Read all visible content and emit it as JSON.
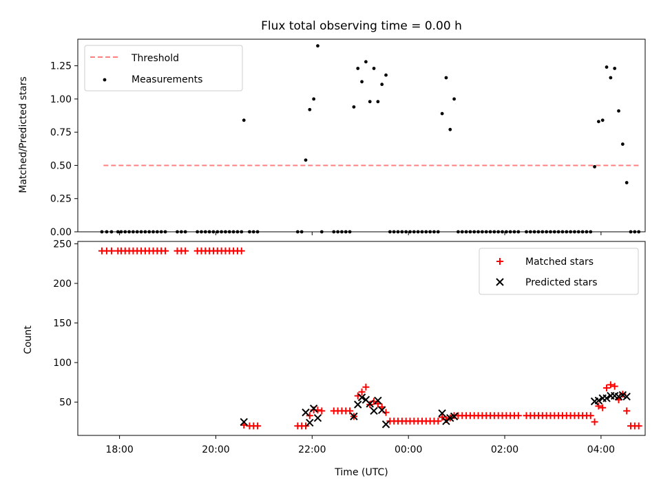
{
  "chart_data": [
    {
      "type": "scatter",
      "title": "Flux total observing time = 0.00 h",
      "xlabel": "",
      "ylabel": "Matched/Predicted stars",
      "ylim": [
        0,
        1.45
      ],
      "xlim": [
        "17:08",
        "04:55"
      ],
      "yticks": [
        "0.00",
        "0.25",
        "0.50",
        "0.75",
        "1.00",
        "1.25"
      ],
      "legend": {
        "placement": "top-left",
        "entries": [
          "Threshold",
          "Measurements"
        ]
      },
      "threshold": {
        "name": "Threshold",
        "value": 0.5,
        "x_start": "17:40",
        "x_end": "04:48",
        "color": "#ff7f7f"
      },
      "series": [
        {
          "name": "Measurements",
          "color": "#000000",
          "points": [
            [
              "17:38",
              0
            ],
            [
              "17:44",
              0
            ],
            [
              "17:50",
              0
            ],
            [
              "17:58",
              0
            ],
            [
              "18:02",
              0
            ],
            [
              "18:07",
              0
            ],
            [
              "18:12",
              0
            ],
            [
              "18:17",
              0
            ],
            [
              "18:22",
              0
            ],
            [
              "18:27",
              0
            ],
            [
              "18:32",
              0
            ],
            [
              "18:37",
              0
            ],
            [
              "18:42",
              0
            ],
            [
              "18:47",
              0
            ],
            [
              "18:52",
              0
            ],
            [
              "18:57",
              0
            ],
            [
              "19:12",
              0
            ],
            [
              "19:17",
              0
            ],
            [
              "19:22",
              0
            ],
            [
              "19:37",
              0
            ],
            [
              "19:42",
              0
            ],
            [
              "19:47",
              0
            ],
            [
              "19:52",
              0
            ],
            [
              "19:57",
              0
            ],
            [
              "20:02",
              0
            ],
            [
              "20:07",
              0
            ],
            [
              "20:12",
              0
            ],
            [
              "20:17",
              0
            ],
            [
              "20:22",
              0
            ],
            [
              "20:27",
              0
            ],
            [
              "20:32",
              0
            ],
            [
              "20:35",
              0.84
            ],
            [
              "20:42",
              0
            ],
            [
              "20:47",
              0
            ],
            [
              "20:52",
              0
            ],
            [
              "21:42",
              0
            ],
            [
              "21:47",
              0
            ],
            [
              "21:52",
              0.54
            ],
            [
              "21:57",
              0.92
            ],
            [
              "22:02",
              1.0
            ],
            [
              "22:07",
              1.4
            ],
            [
              "22:12",
              0
            ],
            [
              "22:27",
              0
            ],
            [
              "22:32",
              0
            ],
            [
              "22:37",
              0
            ],
            [
              "22:42",
              0
            ],
            [
              "22:47",
              0
            ],
            [
              "22:52",
              0.94
            ],
            [
              "22:57",
              1.23
            ],
            [
              "23:02",
              1.13
            ],
            [
              "23:07",
              1.28
            ],
            [
              "23:12",
              0.98
            ],
            [
              "23:17",
              1.23
            ],
            [
              "23:22",
              0.98
            ],
            [
              "23:27",
              1.11
            ],
            [
              "23:32",
              1.18
            ],
            [
              "23:37",
              0
            ],
            [
              "23:42",
              0
            ],
            [
              "23:47",
              0
            ],
            [
              "23:52",
              0
            ],
            [
              "23:57",
              0
            ],
            [
              "00:02",
              0
            ],
            [
              "00:07",
              0
            ],
            [
              "00:12",
              0
            ],
            [
              "00:17",
              0
            ],
            [
              "00:22",
              0
            ],
            [
              "00:27",
              0
            ],
            [
              "00:32",
              0
            ],
            [
              "00:37",
              0
            ],
            [
              "00:42",
              0.89
            ],
            [
              "00:47",
              1.16
            ],
            [
              "00:52",
              0.77
            ],
            [
              "00:57",
              1.0
            ],
            [
              "01:02",
              0
            ],
            [
              "01:07",
              0
            ],
            [
              "01:12",
              0
            ],
            [
              "01:17",
              0
            ],
            [
              "01:22",
              0
            ],
            [
              "01:27",
              0
            ],
            [
              "01:32",
              0
            ],
            [
              "01:37",
              0
            ],
            [
              "01:42",
              0
            ],
            [
              "01:47",
              0
            ],
            [
              "01:52",
              0
            ],
            [
              "01:57",
              0
            ],
            [
              "02:02",
              0
            ],
            [
              "02:07",
              0
            ],
            [
              "02:12",
              0
            ],
            [
              "02:17",
              0
            ],
            [
              "02:27",
              0
            ],
            [
              "02:32",
              0
            ],
            [
              "02:37",
              0
            ],
            [
              "02:42",
              0
            ],
            [
              "02:47",
              0
            ],
            [
              "02:52",
              0
            ],
            [
              "02:57",
              0
            ],
            [
              "03:02",
              0
            ],
            [
              "03:07",
              0
            ],
            [
              "03:12",
              0
            ],
            [
              "03:17",
              0
            ],
            [
              "03:22",
              0
            ],
            [
              "03:27",
              0
            ],
            [
              "03:32",
              0
            ],
            [
              "03:37",
              0
            ],
            [
              "03:42",
              0
            ],
            [
              "03:47",
              0
            ],
            [
              "03:52",
              0.49
            ],
            [
              "03:57",
              0.83
            ],
            [
              "04:02",
              0.84
            ],
            [
              "04:07",
              1.24
            ],
            [
              "04:12",
              1.16
            ],
            [
              "04:17",
              1.23
            ],
            [
              "04:22",
              0.91
            ],
            [
              "04:27",
              0.66
            ],
            [
              "04:32",
              0.37
            ],
            [
              "04:37",
              0
            ],
            [
              "04:42",
              0
            ],
            [
              "04:47",
              0
            ]
          ]
        }
      ]
    },
    {
      "type": "scatter",
      "title": "",
      "xlabel": "Time (UTC)",
      "ylabel": "Count",
      "ylim": [
        8,
        253
      ],
      "xlim": [
        "17:08",
        "04:55"
      ],
      "xticks": [
        "18:00",
        "20:00",
        "22:00",
        "00:00",
        "02:00",
        "04:00"
      ],
      "yticks": [
        "50",
        "100",
        "150",
        "200",
        "250"
      ],
      "legend": {
        "placement": "top-right",
        "entries": [
          "Matched stars",
          "Predicted stars"
        ]
      },
      "series": [
        {
          "name": "Matched stars",
          "color": "#ff0000",
          "marker": "plus",
          "points": [
            [
              "17:38",
              241
            ],
            [
              "17:44",
              241
            ],
            [
              "17:50",
              241
            ],
            [
              "17:58",
              241
            ],
            [
              "18:02",
              241
            ],
            [
              "18:07",
              241
            ],
            [
              "18:12",
              241
            ],
            [
              "18:17",
              241
            ],
            [
              "18:22",
              241
            ],
            [
              "18:27",
              241
            ],
            [
              "18:32",
              241
            ],
            [
              "18:37",
              241
            ],
            [
              "18:42",
              241
            ],
            [
              "18:47",
              241
            ],
            [
              "18:52",
              241
            ],
            [
              "18:57",
              241
            ],
            [
              "19:12",
              241
            ],
            [
              "19:17",
              241
            ],
            [
              "19:22",
              241
            ],
            [
              "19:37",
              241
            ],
            [
              "19:42",
              241
            ],
            [
              "19:47",
              241
            ],
            [
              "19:52",
              241
            ],
            [
              "19:57",
              241
            ],
            [
              "20:02",
              241
            ],
            [
              "20:07",
              241
            ],
            [
              "20:12",
              241
            ],
            [
              "20:17",
              241
            ],
            [
              "20:22",
              241
            ],
            [
              "20:27",
              241
            ],
            [
              "20:32",
              241
            ],
            [
              "20:35",
              21
            ],
            [
              "20:42",
              20
            ],
            [
              "20:47",
              20
            ],
            [
              "20:52",
              20
            ],
            [
              "21:42",
              20
            ],
            [
              "21:47",
              20
            ],
            [
              "21:52",
              20
            ],
            [
              "21:57",
              33
            ],
            [
              "22:02",
              40
            ],
            [
              "22:07",
              40
            ],
            [
              "22:12",
              39
            ],
            [
              "22:27",
              39
            ],
            [
              "22:32",
              39
            ],
            [
              "22:37",
              39
            ],
            [
              "22:42",
              39
            ],
            [
              "22:47",
              39
            ],
            [
              "22:52",
              32
            ],
            [
              "22:57",
              58
            ],
            [
              "23:02",
              63
            ],
            [
              "23:07",
              69
            ],
            [
              "23:12",
              47
            ],
            [
              "23:17",
              51
            ],
            [
              "23:22",
              48
            ],
            [
              "23:27",
              44
            ],
            [
              "23:32",
              37
            ],
            [
              "23:37",
              26
            ],
            [
              "23:42",
              26
            ],
            [
              "23:47",
              26
            ],
            [
              "23:52",
              26
            ],
            [
              "23:57",
              26
            ],
            [
              "00:02",
              26
            ],
            [
              "00:07",
              26
            ],
            [
              "00:12",
              26
            ],
            [
              "00:17",
              26
            ],
            [
              "00:22",
              26
            ],
            [
              "00:27",
              26
            ],
            [
              "00:32",
              26
            ],
            [
              "00:37",
              26
            ],
            [
              "00:42",
              31
            ],
            [
              "00:47",
              28
            ],
            [
              "00:52",
              30
            ],
            [
              "00:57",
              33
            ],
            [
              "01:02",
              33
            ],
            [
              "01:07",
              33
            ],
            [
              "01:12",
              33
            ],
            [
              "01:17",
              33
            ],
            [
              "01:22",
              33
            ],
            [
              "01:27",
              33
            ],
            [
              "01:32",
              33
            ],
            [
              "01:37",
              33
            ],
            [
              "01:42",
              33
            ],
            [
              "01:47",
              33
            ],
            [
              "01:52",
              33
            ],
            [
              "01:57",
              33
            ],
            [
              "02:02",
              33
            ],
            [
              "02:07",
              33
            ],
            [
              "02:12",
              33
            ],
            [
              "02:17",
              33
            ],
            [
              "02:27",
              33
            ],
            [
              "02:32",
              33
            ],
            [
              "02:37",
              33
            ],
            [
              "02:42",
              33
            ],
            [
              "02:47",
              33
            ],
            [
              "02:52",
              33
            ],
            [
              "02:57",
              33
            ],
            [
              "03:02",
              33
            ],
            [
              "03:07",
              33
            ],
            [
              "03:12",
              33
            ],
            [
              "03:17",
              33
            ],
            [
              "03:22",
              33
            ],
            [
              "03:27",
              33
            ],
            [
              "03:32",
              33
            ],
            [
              "03:37",
              33
            ],
            [
              "03:42",
              33
            ],
            [
              "03:47",
              33
            ],
            [
              "03:52",
              25
            ],
            [
              "03:57",
              45
            ],
            [
              "04:02",
              43
            ],
            [
              "04:07",
              68
            ],
            [
              "04:12",
              72
            ],
            [
              "04:17",
              70
            ],
            [
              "04:22",
              53
            ],
            [
              "04:27",
              60
            ],
            [
              "04:32",
              39
            ],
            [
              "04:37",
              20
            ],
            [
              "04:42",
              20
            ],
            [
              "04:47",
              20
            ]
          ]
        },
        {
          "name": "Predicted stars",
          "color": "#000000",
          "marker": "x",
          "points": [
            [
              "20:35",
              25
            ],
            [
              "21:52",
              37
            ],
            [
              "21:57",
              24
            ],
            [
              "22:02",
              42
            ],
            [
              "22:07",
              30
            ],
            [
              "22:52",
              32
            ],
            [
              "22:57",
              47
            ],
            [
              "23:02",
              56
            ],
            [
              "23:07",
              53
            ],
            [
              "23:12",
              48
            ],
            [
              "23:17",
              39
            ],
            [
              "23:22",
              52
            ],
            [
              "23:27",
              40
            ],
            [
              "23:32",
              22
            ],
            [
              "00:42",
              36
            ],
            [
              "00:47",
              26
            ],
            [
              "00:52",
              30
            ],
            [
              "00:57",
              32
            ],
            [
              "03:52",
              51
            ],
            [
              "03:57",
              52
            ],
            [
              "04:02",
              55
            ],
            [
              "04:07",
              55
            ],
            [
              "04:12",
              58
            ],
            [
              "04:17",
              58
            ],
            [
              "04:22",
              57
            ],
            [
              "04:27",
              59
            ],
            [
              "04:32",
              57
            ]
          ]
        }
      ]
    }
  ]
}
